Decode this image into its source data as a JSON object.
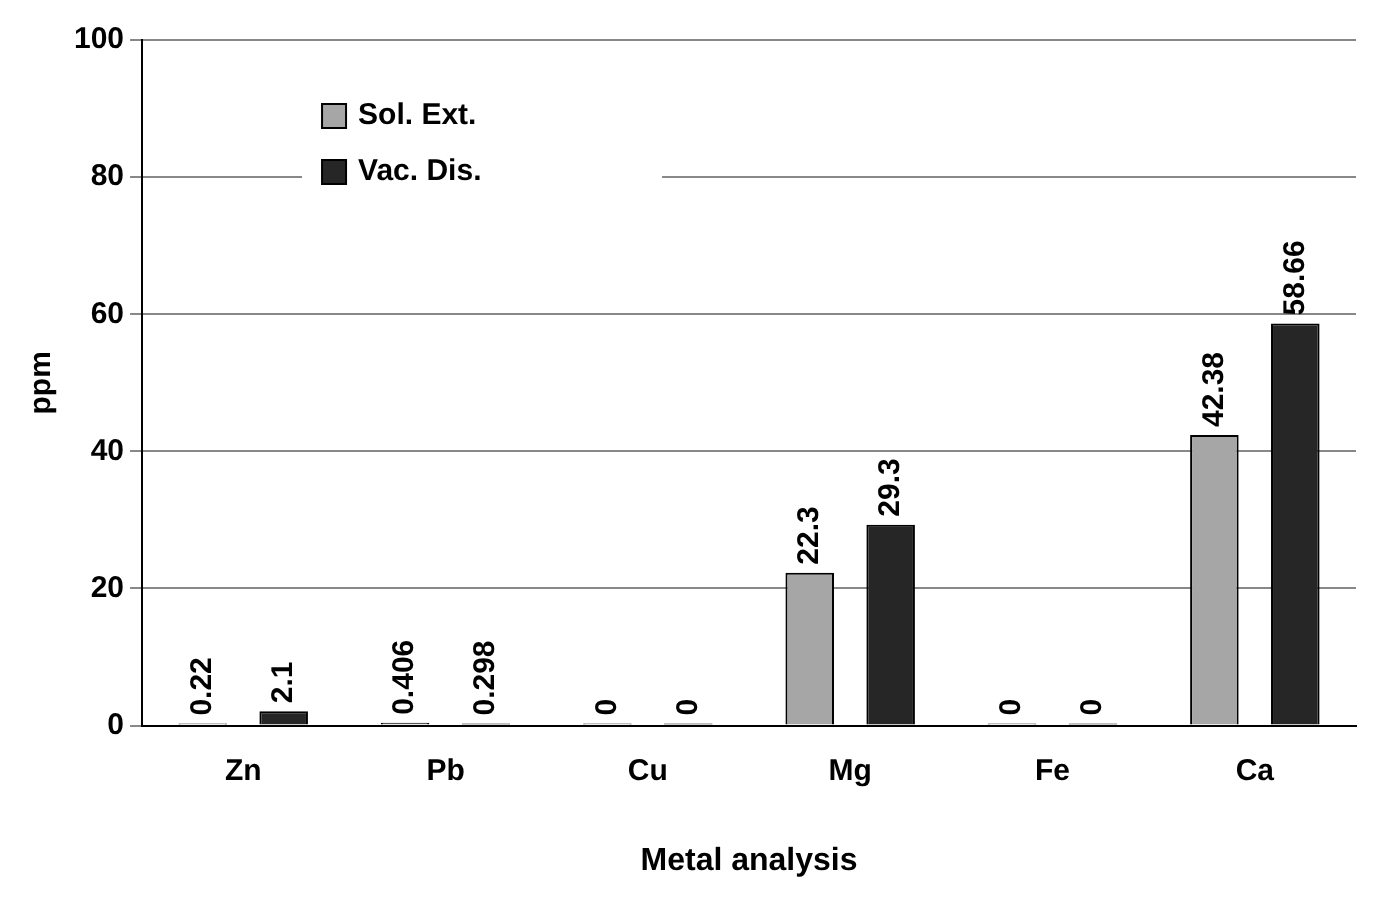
{
  "chart_data": {
    "type": "bar",
    "xlabel": "Metal analysis",
    "ylabel": "ppm",
    "categories": [
      "Zn",
      "Pb",
      "Cu",
      "Mg",
      "Fe",
      "Ca"
    ],
    "series": [
      {
        "name": "Sol. Ext.",
        "color": "#a6a6a6",
        "values": [
          0.22,
          0.406,
          0,
          22.3,
          0,
          42.38
        ]
      },
      {
        "name": "Vac. Dis.",
        "color": "#262626",
        "values": [
          2.1,
          0.298,
          0,
          29.3,
          0,
          58.66
        ]
      }
    ],
    "ylim": [
      0,
      100
    ],
    "yticks": [
      0,
      20,
      40,
      60,
      80,
      100
    ],
    "grid": "y",
    "legend": "top left",
    "data_labels": true
  }
}
